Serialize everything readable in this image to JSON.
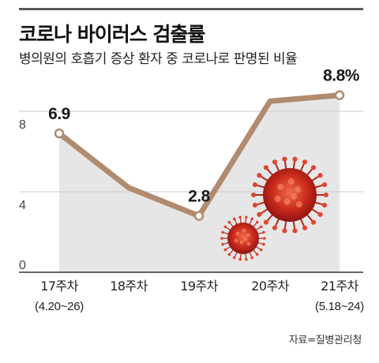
{
  "header": {
    "title": "코로나 바이러스 검출률",
    "subtitle": "병의원의 호흡기 증상 환자 중 코로나로 판명된 비율"
  },
  "source": "자료=질병관리청",
  "colors": {
    "line": "#b08b6f",
    "area": "#e6e6e6",
    "grid": "#c9c9c9",
    "virus": "#d63a26"
  },
  "chart_data": {
    "type": "area",
    "categories": [
      "17주차",
      "18주차",
      "19주차",
      "20주차",
      "21주차"
    ],
    "category_sublabels": [
      "(4.20~26)",
      "",
      "",
      "",
      "(5.18~24)"
    ],
    "values": [
      6.9,
      4.2,
      2.8,
      8.5,
      8.8
    ],
    "data_labels": [
      "6.9",
      "",
      "2.8",
      "",
      "8.8%"
    ],
    "ylim": [
      0,
      10
    ],
    "y_ticks": [
      0,
      4,
      8
    ],
    "grid": true,
    "xlabel": "",
    "ylabel": ""
  }
}
